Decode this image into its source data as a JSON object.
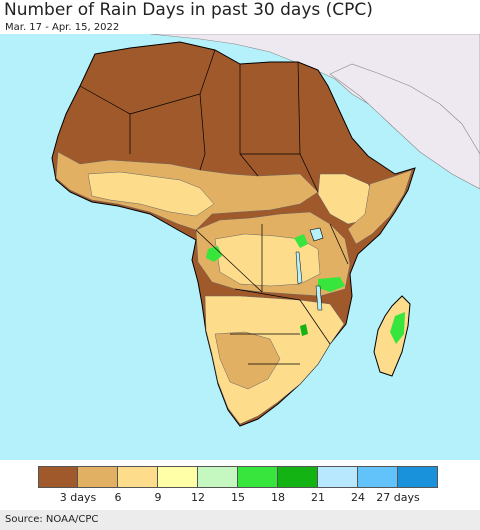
{
  "title": "Number of Rain Days in past 30 days (CPC)",
  "subtitle": "Mar. 17 - Apr. 15, 2022",
  "legend": {
    "colors": [
      "#a0592b",
      "#e2b062",
      "#fddc8c",
      "#ffffa8",
      "#c4f8c0",
      "#38e53c",
      "#12b312",
      "#b8e8fe",
      "#62c2fa",
      "#1991db"
    ],
    "labels": [
      "3 days",
      "6",
      "9",
      "12",
      "15",
      "18",
      "21",
      "24",
      "27 days"
    ]
  },
  "source": "Source: NOAA/CPC",
  "map": {
    "ocean_color": "#b5f1fb",
    "land_outside_color": "#eee9f0",
    "border_color": "#000000"
  }
}
